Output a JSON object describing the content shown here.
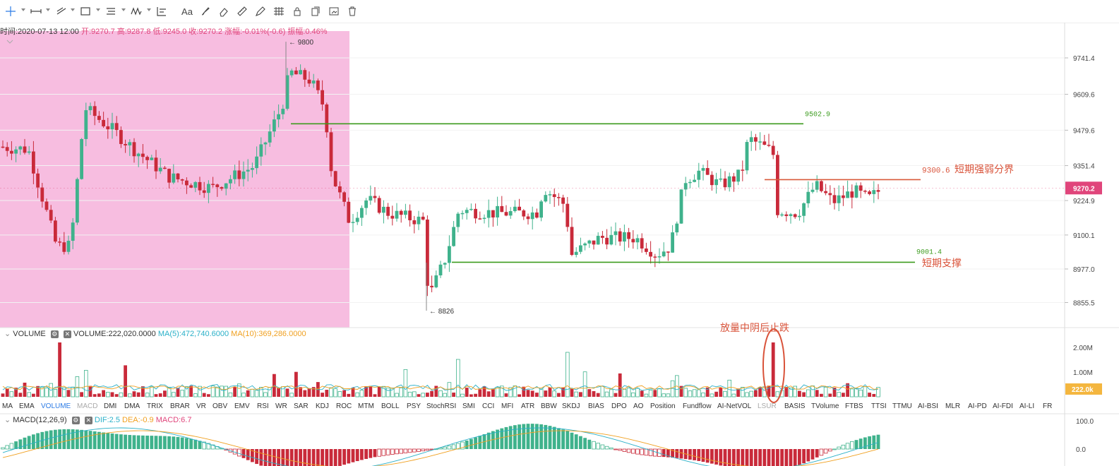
{
  "toolbar": {
    "tools": [
      "crosshair-icon",
      "horizontal-ray-icon",
      "trend-line-icon",
      "rectangle-icon",
      "parallel-channel-icon",
      "wave-pattern-icon",
      "measure-icon",
      "text-icon",
      "brush-icon",
      "eraser-icon",
      "ruler-icon",
      "pencil-icon",
      "fib-icon",
      "lock-icon",
      "copy-icon",
      "screenshot-icon",
      "trash-icon"
    ],
    "text_tool_label": "Aa"
  },
  "ohlc": {
    "time_label": "时间:2020-07-13 12:00",
    "open_label": "开:9270.7",
    "high_label": "高:9287.8",
    "low_label": "低:9245.0",
    "close_label": "收:9270.2",
    "change_label": "涨幅:-0.01%(-0.6)",
    "amplitude_label": "振幅:0.46%"
  },
  "volume_header": {
    "name": "VOLUME",
    "value": "VOLUME:222,020.0000",
    "ma5": "MA(5):472,740.6000",
    "ma10": "MA(10):369,286.0000"
  },
  "macd_header": {
    "name": "MACD(12,26,9)",
    "dif": "DIF:2.5",
    "dea": "DEA:-0.9",
    "macd": "MACD:6.7"
  },
  "indicator_tabs": [
    "MA",
    "EMA",
    "VOLUME",
    "MACD",
    "DMI",
    "DMA",
    "TRIX",
    "BRAR",
    "VR",
    "OBV",
    "EMV",
    "RSI",
    "WR",
    "SAR",
    "KDJ",
    "ROC",
    "MTM",
    "BOLL",
    "PSY",
    "StochRSI",
    "SMI",
    "CCI",
    "MFI",
    "ATR",
    "BBW",
    "SKDJ",
    "BIAS",
    "DPO",
    "AO",
    "Position",
    "Fundflow",
    "AI-NetVOL",
    "LSUR",
    "BASIS",
    "TVolume",
    "FTBS",
    "TTSI",
    "TTMU",
    "AI-BSI",
    "MLR",
    "AI-PD",
    "AI-FDI",
    "AI-LI",
    "FR"
  ],
  "active_tab": "VOLUME",
  "dim_tabs": [
    "MACD",
    "LSUR"
  ],
  "colors": {
    "up": "#3fb28c",
    "down": "#c92a3a",
    "highlight": "#f7bde0",
    "level_line": "#3c9b1e",
    "resistance_line": "#d9593a",
    "annotation": "#d9533a",
    "ma5": "#2ab0c8",
    "ma10": "#f0a020",
    "price_tag": "#e0457b",
    "vol_tag": "#f4b63f"
  },
  "chart_data": {
    "type": "candlestick",
    "timestamp": "2020-07-13 12:00",
    "price_axis": {
      "ticks": [
        9741.4,
        9609.6,
        9479.6,
        9351.4,
        9224.9,
        9100.1,
        8977.0,
        8855.5
      ]
    },
    "last_price": 9270.2,
    "high_marker": 9800,
    "low_marker": 8826,
    "levels": [
      {
        "value": 9502.9,
        "label": "9502.9",
        "note": ""
      },
      {
        "value": 9300.6,
        "label": "9300.6",
        "note": "短期强弱分界"
      },
      {
        "value": 9001.4,
        "label": "9001.4",
        "note": "短期支撑"
      }
    ],
    "volume_axis": {
      "ticks": [
        "2.00M",
        "1.00M"
      ],
      "last_label": "222.0k"
    },
    "macd_axis": {
      "ticks": [
        "100.0",
        "0.0"
      ]
    },
    "annotation": "放量中阴后止跌"
  }
}
